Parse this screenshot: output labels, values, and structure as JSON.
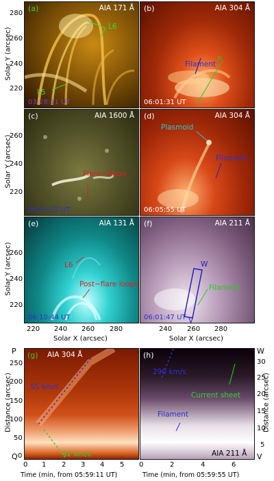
{
  "panels": {
    "a": {
      "label": "(a)",
      "title": "AIA 171 Å",
      "time": "03:28:11 UT",
      "ann": {
        "l6": "L6",
        "l5": "L5"
      }
    },
    "b": {
      "label": "(b)",
      "title": "AIA 304 Å",
      "time": "06:01:31 UT",
      "ann": {
        "filament": "Filament",
        "p": "P"
      }
    },
    "c": {
      "label": "(c)",
      "title": "AIA 1600 Å",
      "time": "06:01:52 UT",
      "ann": {
        "flare_ribbon": "Flare ribbon"
      }
    },
    "d": {
      "label": "(d)",
      "title": "AIA 304 Å",
      "time": "06:05:55 UT",
      "ann": {
        "plasmoid": "Plasmoid",
        "filament": "Filament"
      }
    },
    "e": {
      "label": "(e)",
      "title": "AIA 131 Å",
      "time": "06:10:44 UT",
      "ann": {
        "l6": "L6",
        "post_flare": "Post−flare loops"
      }
    },
    "f": {
      "label": "(f)",
      "title": "AIA 211 Å",
      "time": "06:01:47 UT",
      "ann": {
        "filament": "Filament",
        "w": "W",
        "v": "V"
      }
    },
    "g": {
      "label": "(g)",
      "title": "AIA 304 Å",
      "ann": {
        "speed1": "55 km/s",
        "speed2": "42 km/s"
      }
    },
    "h": {
      "label": "(h)",
      "title": "AIA 211 Å",
      "ann": {
        "speed": "290 km/s",
        "current_sheet": "Current sheet",
        "filament": "Filament"
      }
    }
  },
  "axes": {
    "solar_y_label": "Solar Y (arcsec)",
    "solar_x_label": "Solar X (arcsec)",
    "solar_y_ticks": [
      "280",
      "260",
      "240",
      "220"
    ],
    "solar_x_ticks": [
      "220",
      "240",
      "260",
      "280"
    ],
    "distance_label_left": "Distance (arcsec)",
    "distance_label_right": "Distance (arcsec)",
    "left_dist_ticks": [
      "250",
      "200",
      "150",
      "100",
      "50",
      "0"
    ],
    "right_dist_ticks": [
      "30",
      "25",
      "20",
      "15",
      "10",
      "5"
    ],
    "p_label": "P",
    "q_label": "Q",
    "w_label": "W",
    "v_label": "V",
    "time_ticks_g": [
      "0",
      "1",
      "2",
      "3",
      "4",
      "5"
    ],
    "time_ticks_h": [
      "0",
      "2",
      "4",
      "6"
    ],
    "time_label_g": "Time (min, from 05:59:11 UT)",
    "time_label_h": "Time (min, from 05:59:55 UT)"
  }
}
